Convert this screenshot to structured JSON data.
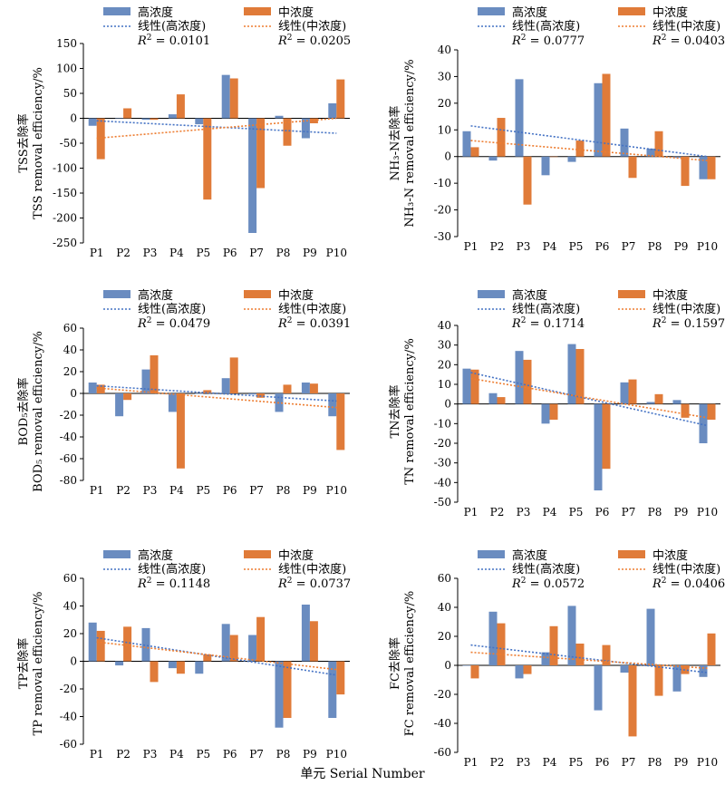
{
  "figure": {
    "xlabel": "单元 Serial Number",
    "legend": {
      "high": "高浓度",
      "mid": "中浓度",
      "high_fit": "线性(高浓度)",
      "mid_fit": "线性(中浓度)"
    },
    "colors": {
      "high": "#6A8CC0",
      "mid": "#E07B39",
      "high_fit": "#4472C4",
      "mid_fit": "#ED7D31"
    },
    "categories": [
      "P1",
      "P2",
      "P3",
      "P4",
      "P5",
      "P6",
      "P7",
      "P8",
      "P9",
      "P10"
    ]
  },
  "chart_data": [
    {
      "type": "bar",
      "ylabel_cn": "TSS去除率",
      "ylabel_en": "TSS removal efficiency/%",
      "ylim": [
        -250,
        150
      ],
      "yticks": [
        150,
        100,
        50,
        0,
        -50,
        -100,
        -150,
        -200,
        -250
      ],
      "r2_high": "0.0101",
      "r2_mid": "0.0205",
      "categories": [
        "P1",
        "P2",
        "P3",
        "P4",
        "P5",
        "P6",
        "P7",
        "P8",
        "P9",
        "P10"
      ],
      "series": [
        {
          "name": "高浓度",
          "values": [
            -15,
            0,
            -3,
            8,
            -12,
            87,
            -230,
            5,
            -40,
            30
          ]
        },
        {
          "name": "中浓度",
          "values": [
            -82,
            20,
            -3,
            48,
            -163,
            80,
            -140,
            -55,
            -10,
            78
          ]
        }
      ],
      "trend_high": [
        -5,
        -30
      ],
      "trend_mid": [
        -40,
        0
      ]
    },
    {
      "type": "bar",
      "ylabel_cn": "NH₃-N去除率",
      "ylabel_en": "NH₃-N removal efficiency/%",
      "ylim": [
        -30,
        40
      ],
      "yticks": [
        40,
        30,
        20,
        10,
        0,
        -10,
        -20,
        -30
      ],
      "r2_high": "0.0777",
      "r2_mid": "0.0403",
      "categories": [
        "P1",
        "P2",
        "P3",
        "P4",
        "P5",
        "P6",
        "P7",
        "P8",
        "P9",
        "P10"
      ],
      "series": [
        {
          "name": "高浓度",
          "values": [
            9.5,
            -1.5,
            29,
            -7,
            -2,
            27.5,
            10.5,
            3,
            -0.5,
            -8.5
          ]
        },
        {
          "name": "中浓度",
          "values": [
            3.5,
            14.5,
            -18,
            0,
            6,
            31,
            -8,
            9.5,
            -11,
            -8.5
          ]
        }
      ],
      "trend_high": [
        11.5,
        0
      ],
      "trend_mid": [
        6,
        -1.5
      ]
    },
    {
      "type": "bar",
      "ylabel_cn": "BOD₅去除率",
      "ylabel_en": "BOD₅ removal efficiency/%",
      "ylim": [
        -80,
        60
      ],
      "yticks": [
        60,
        40,
        20,
        0,
        -20,
        -40,
        -60,
        -80
      ],
      "r2_high": "0.0479",
      "r2_mid": "0.0391",
      "categories": [
        "P1",
        "P2",
        "P3",
        "P4",
        "P5",
        "P6",
        "P7",
        "P8",
        "P9",
        "P10"
      ],
      "series": [
        {
          "name": "高浓度",
          "values": [
            10,
            -21,
            22,
            -17,
            0,
            14,
            -1,
            -17,
            10,
            -21
          ]
        },
        {
          "name": "中浓度",
          "values": [
            8,
            -6,
            35,
            -69,
            3,
            33,
            -4,
            8,
            9,
            -52
          ]
        }
      ],
      "trend_high": [
        7,
        -7
      ],
      "trend_mid": [
        5,
        -13
      ]
    },
    {
      "type": "bar",
      "ylabel_cn": "TN去除率",
      "ylabel_en": "TN removal efficiency/%",
      "ylim": [
        -50,
        40
      ],
      "yticks": [
        40,
        30,
        20,
        10,
        0,
        -10,
        -20,
        -30,
        -40,
        -50
      ],
      "r2_high": "0.1714",
      "r2_mid": "0.1597",
      "categories": [
        "P1",
        "P2",
        "P3",
        "P4",
        "P5",
        "P6",
        "P7",
        "P8",
        "P9",
        "P10"
      ],
      "series": [
        {
          "name": "高浓度",
          "values": [
            18,
            5.5,
            27,
            -10,
            30.5,
            -44,
            11,
            1,
            2,
            -20
          ]
        },
        {
          "name": "中浓度",
          "values": [
            17.5,
            3.5,
            22.5,
            -8,
            28,
            -33,
            12.5,
            5,
            -7,
            -8
          ]
        }
      ],
      "trend_high": [
        16,
        -11
      ],
      "trend_mid": [
        13,
        -7
      ]
    },
    {
      "type": "bar",
      "ylabel_cn": "TP去除率",
      "ylabel_en": "TP removal efficiency/%",
      "ylim": [
        -60,
        60
      ],
      "yticks": [
        60,
        40,
        20,
        0,
        -20,
        -40,
        -60
      ],
      "r2_high": "0.1148",
      "r2_mid": "0.0737",
      "categories": [
        "P1",
        "P2",
        "P3",
        "P4",
        "P5",
        "P6",
        "P7",
        "P8",
        "P9",
        "P10"
      ],
      "series": [
        {
          "name": "高浓度",
          "values": [
            28,
            -3,
            24,
            -5,
            -9,
            27,
            19,
            -48,
            41,
            -41
          ]
        },
        {
          "name": "中浓度",
          "values": [
            22,
            25,
            -15,
            -9,
            5,
            19,
            32,
            -41,
            29,
            -24
          ]
        }
      ],
      "trend_high": [
        17,
        -10
      ],
      "trend_mid": [
        14,
        -6
      ]
    },
    {
      "type": "bar",
      "ylabel_cn": "FC去除率",
      "ylabel_en": "FC removal efficiency/%",
      "ylim": [
        -60,
        60
      ],
      "yticks": [
        60,
        40,
        20,
        0,
        -20,
        -40,
        -60
      ],
      "r2_high": "0.0572",
      "r2_mid": "0.0406",
      "categories": [
        "P1",
        "P2",
        "P3",
        "P4",
        "P5",
        "P6",
        "P7",
        "P8",
        "P9",
        "P10"
      ],
      "series": [
        {
          "name": "高浓度",
          "values": [
            0,
            37,
            -9,
            9,
            41,
            -31,
            -5,
            39,
            -18,
            -8
          ]
        },
        {
          "name": "中浓度",
          "values": [
            -9,
            29,
            -6,
            27,
            15,
            14,
            -49,
            -21,
            -6,
            22
          ]
        }
      ],
      "trend_high": [
        14,
        -5
      ],
      "trend_mid": [
        9,
        -2
      ]
    }
  ]
}
